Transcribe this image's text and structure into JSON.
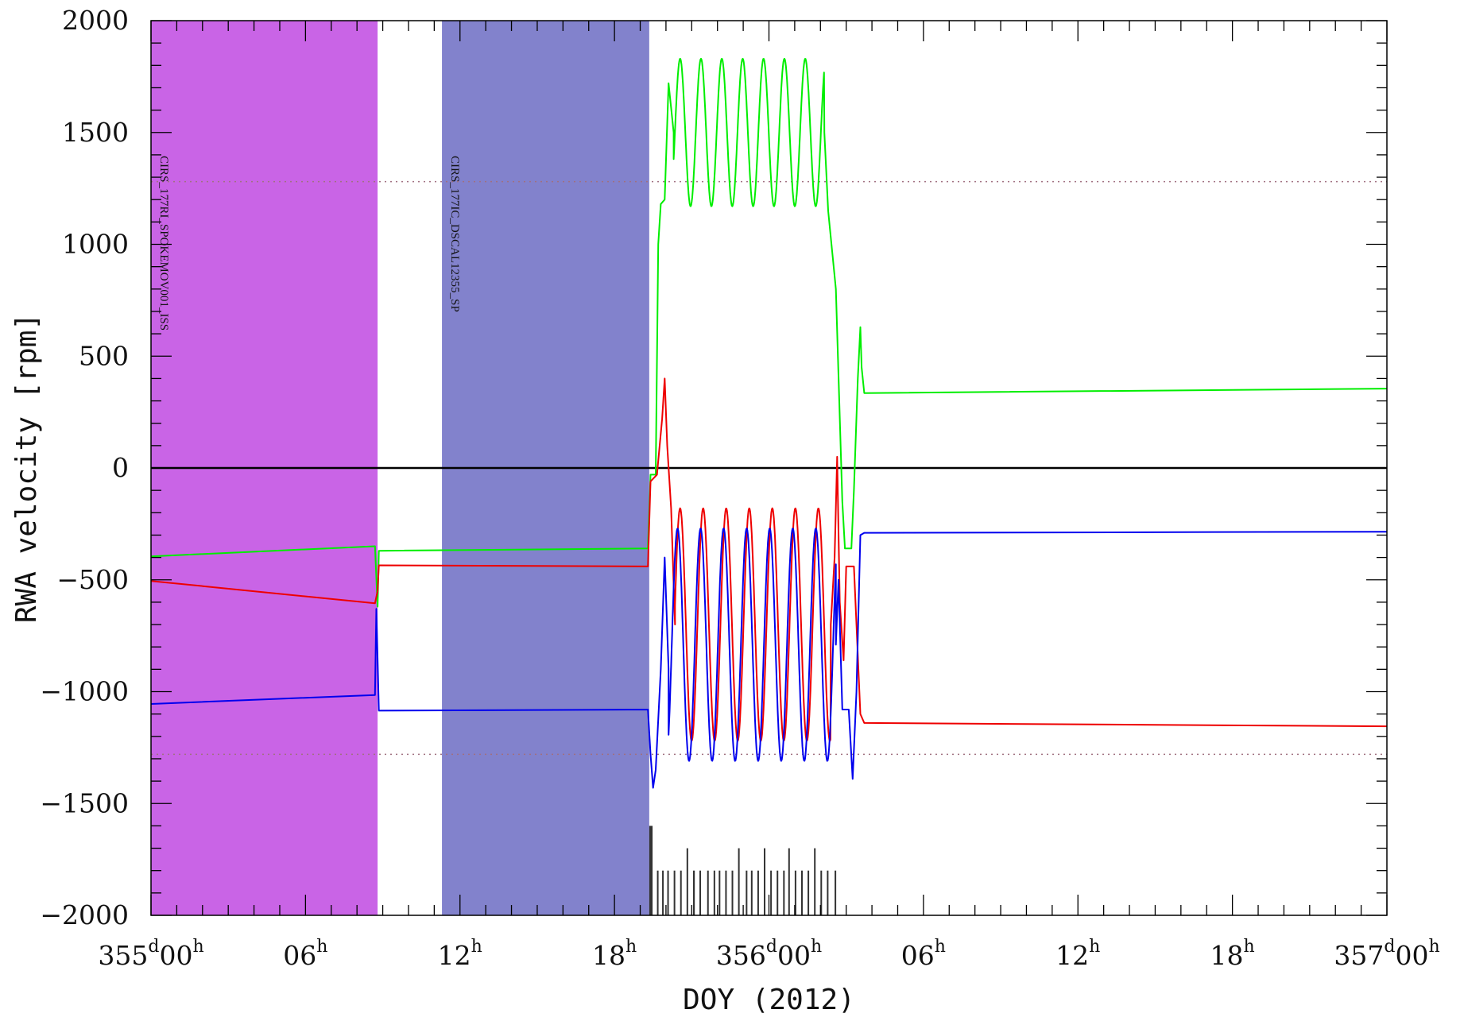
{
  "chart_data": {
    "type": "line",
    "title": "",
    "xlabel": "DOY (2012)",
    "ylabel": "RWA velocity [rpm]",
    "xlim_hours": [
      0,
      48
    ],
    "ylim": [
      -2000,
      2000
    ],
    "y_ticks": [
      -2000,
      -1500,
      -1000,
      -500,
      0,
      500,
      1000,
      1500,
      2000
    ],
    "y_tick_labels": [
      "−2000",
      "−1500",
      "−1000",
      "−500",
      "0",
      "500",
      "1000",
      "1500",
      "2000"
    ],
    "x_ticks": [
      {
        "hours": 0,
        "day": "355",
        "hour": "00"
      },
      {
        "hours": 6,
        "day": "",
        "hour": "06"
      },
      {
        "hours": 12,
        "day": "",
        "hour": "12"
      },
      {
        "hours": 18,
        "day": "",
        "hour": "18"
      },
      {
        "hours": 24,
        "day": "356",
        "hour": "00"
      },
      {
        "hours": 30,
        "day": "",
        "hour": "06"
      },
      {
        "hours": 36,
        "day": "",
        "hour": "12"
      },
      {
        "hours": 42,
        "day": "",
        "hour": "18"
      },
      {
        "hours": 48,
        "day": "357",
        "hour": "00"
      }
    ],
    "day_superscript": "d",
    "hour_superscript": "h",
    "grid": false,
    "reference_lines": [
      {
        "y": 0,
        "style": "solid",
        "color": "#000000"
      },
      {
        "y": 1280,
        "style": "dotted",
        "color": "#a07080"
      },
      {
        "y": -1280,
        "style": "dotted",
        "color": "#a07080"
      }
    ],
    "bands": [
      {
        "label": "CIRS_177RI_SPOKEMOV001_ISS",
        "x_start": 0,
        "x_end": 8.8,
        "color": "#c964e6"
      },
      {
        "label": "CIRS_177IC_DSCAL12355_SP",
        "x_start": 11.3,
        "x_end": 19.35,
        "color": "#8282cc"
      }
    ],
    "series": [
      {
        "color": "#00ee00",
        "points": [
          [
            0,
            -395
          ],
          [
            8.7,
            -350
          ],
          [
            8.8,
            -620
          ],
          [
            8.85,
            -370
          ],
          [
            19.3,
            -360
          ],
          [
            19.4,
            -30
          ],
          [
            19.6,
            -30
          ],
          [
            19.7,
            1000
          ],
          [
            19.8,
            1180
          ],
          [
            19.95,
            1200
          ],
          [
            20.1,
            1720
          ],
          [
            20.3,
            1500
          ]
        ],
        "oscillation": {
          "start": 20.3,
          "end": 26.15,
          "center": 1500,
          "amplitude": 330,
          "period": 0.81,
          "phase_start": 20.55
        },
        "tail": [
          [
            26.15,
            1500
          ],
          [
            26.3,
            1150
          ],
          [
            26.6,
            800
          ],
          [
            26.85,
            -150
          ],
          [
            26.95,
            -360
          ],
          [
            27.2,
            -360
          ],
          [
            27.3,
            -100
          ],
          [
            27.45,
            400
          ],
          [
            27.55,
            630
          ],
          [
            27.6,
            450
          ],
          [
            27.7,
            335
          ],
          [
            48,
            355
          ]
        ]
      },
      {
        "color": "#ee0000",
        "points": [
          [
            0,
            -505
          ],
          [
            8.7,
            -605
          ],
          [
            8.8,
            -550
          ],
          [
            8.85,
            -435
          ],
          [
            19.3,
            -440
          ],
          [
            19.4,
            -60
          ],
          [
            19.65,
            -30
          ],
          [
            19.85,
            220
          ],
          [
            19.95,
            400
          ],
          [
            20.05,
            100
          ],
          [
            20.2,
            -180
          ],
          [
            20.35,
            -700
          ]
        ],
        "oscillation": {
          "start": 20.35,
          "end": 26.4,
          "center": -700,
          "amplitude": 520,
          "period": 0.895,
          "phase_start": 20.55
        },
        "tail": [
          [
            26.4,
            -700
          ],
          [
            26.55,
            -400
          ],
          [
            26.65,
            50
          ],
          [
            26.75,
            -600
          ],
          [
            26.9,
            -860
          ],
          [
            27.0,
            -440
          ],
          [
            27.3,
            -440
          ],
          [
            27.4,
            -700
          ],
          [
            27.55,
            -1100
          ],
          [
            27.7,
            -1140
          ],
          [
            48,
            -1155
          ]
        ]
      },
      {
        "color": "#0000ee",
        "points": [
          [
            0,
            -1055
          ],
          [
            8.7,
            -1015
          ],
          [
            8.75,
            -630
          ],
          [
            8.85,
            -1085
          ],
          [
            19.3,
            -1080
          ],
          [
            19.4,
            -1280
          ],
          [
            19.5,
            -1430
          ],
          [
            19.6,
            -1350
          ],
          [
            19.8,
            -900
          ],
          [
            19.95,
            -400
          ],
          [
            20.1,
            -900
          ]
        ],
        "oscillation": {
          "start": 20.1,
          "end": 26.6,
          "center": -790,
          "amplitude": 520,
          "period": 0.895,
          "phase_start": 20.45
        },
        "tail": [
          [
            26.6,
            -790
          ],
          [
            26.7,
            -500
          ],
          [
            26.85,
            -1080
          ],
          [
            27.1,
            -1080
          ],
          [
            27.25,
            -1390
          ],
          [
            27.4,
            -1000
          ],
          [
            27.55,
            -300
          ],
          [
            27.7,
            -290
          ],
          [
            48,
            -285
          ]
        ]
      }
    ],
    "histogram": {
      "color": "#333333",
      "bars": [
        {
          "x": 19.35,
          "y": -1600,
          "w": 0.13
        },
        {
          "x": 19.65,
          "y": -1800,
          "w": 0.05
        },
        {
          "x": 19.85,
          "y": -1800,
          "w": 0.05
        },
        {
          "x": 20.05,
          "y": -1800,
          "w": 0.05
        },
        {
          "x": 20.3,
          "y": -1800,
          "w": 0.06
        },
        {
          "x": 20.55,
          "y": -1800,
          "w": 0.06
        },
        {
          "x": 20.8,
          "y": -1700,
          "w": 0.05
        },
        {
          "x": 21.05,
          "y": -1800,
          "w": 0.07
        },
        {
          "x": 21.3,
          "y": -1800,
          "w": 0.06
        },
        {
          "x": 21.6,
          "y": -1800,
          "w": 0.06
        },
        {
          "x": 21.85,
          "y": -1800,
          "w": 0.06
        },
        {
          "x": 22.05,
          "y": -1800,
          "w": 0.05
        },
        {
          "x": 22.3,
          "y": -1800,
          "w": 0.06
        },
        {
          "x": 22.55,
          "y": -1800,
          "w": 0.06
        },
        {
          "x": 22.8,
          "y": -1700,
          "w": 0.05
        },
        {
          "x": 23.1,
          "y": -1800,
          "w": 0.06
        },
        {
          "x": 23.3,
          "y": -1800,
          "w": 0.06
        },
        {
          "x": 23.55,
          "y": -1800,
          "w": 0.06
        },
        {
          "x": 23.8,
          "y": -1700,
          "w": 0.05
        },
        {
          "x": 24.05,
          "y": -1800,
          "w": 0.06
        },
        {
          "x": 24.3,
          "y": -1800,
          "w": 0.06
        },
        {
          "x": 24.55,
          "y": -1800,
          "w": 0.06
        },
        {
          "x": 24.75,
          "y": -1700,
          "w": 0.05
        },
        {
          "x": 25.0,
          "y": -1800,
          "w": 0.06
        },
        {
          "x": 25.25,
          "y": -1800,
          "w": 0.06
        },
        {
          "x": 25.5,
          "y": -1800,
          "w": 0.06
        },
        {
          "x": 25.75,
          "y": -1700,
          "w": 0.05
        },
        {
          "x": 26.0,
          "y": -1800,
          "w": 0.06
        },
        {
          "x": 26.25,
          "y": -1800,
          "w": 0.06
        },
        {
          "x": 26.55,
          "y": -1800,
          "w": 0.05
        }
      ]
    }
  }
}
